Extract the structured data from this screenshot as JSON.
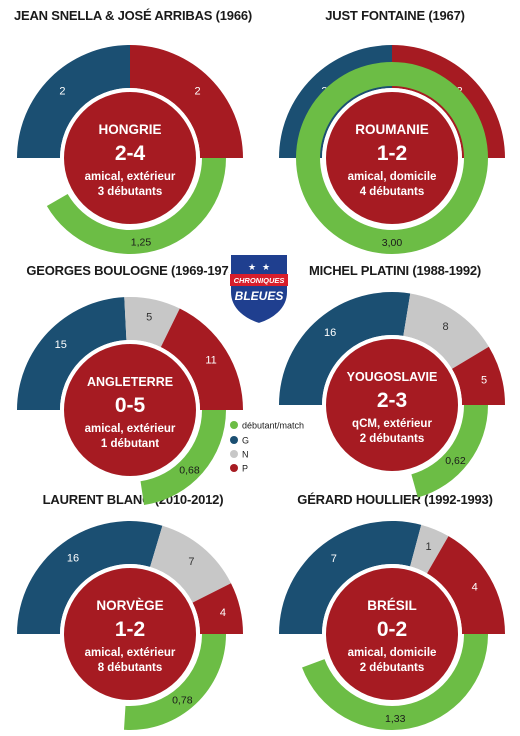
{
  "colors": {
    "G": "#1b4f72",
    "N": "#c7c7c7",
    "P": "#a61b22",
    "debutant": "#6cbd45",
    "center": "#a61b22"
  },
  "logo": {
    "line1": "CHRONIQUES",
    "line2": "BLEUES"
  },
  "legend": [
    {
      "key": "debutant",
      "label": "débutant/match"
    },
    {
      "key": "G",
      "label": "G"
    },
    {
      "key": "N",
      "label": "N"
    },
    {
      "key": "P",
      "label": "P"
    }
  ],
  "chart_data": [
    {
      "type": "donut",
      "title": "JEAN SNELLA & JOSÉ ARRIBAS (1966)",
      "opponent": "HONGRIE",
      "score": "2-4",
      "line1": "amical, extérieur",
      "line2": "3 débutants",
      "series": [
        {
          "key": "G",
          "value": 2
        },
        {
          "key": "N",
          "value": 0
        },
        {
          "key": "P",
          "value": 2
        }
      ],
      "debutants_per_match": 1.25,
      "debutants_label": "1,25"
    },
    {
      "type": "donut",
      "title": "JUST FONTAINE (1967)",
      "opponent": "ROUMANIE",
      "score": "1-2",
      "line1": "amical, domicile",
      "line2": "4 débutants",
      "series": [
        {
          "key": "G",
          "value": 2
        },
        {
          "key": "N",
          "value": 0
        },
        {
          "key": "P",
          "value": 2
        }
      ],
      "debutants_per_match": 3.0,
      "debutants_label": "3,00"
    },
    {
      "type": "donut",
      "title": "GEORGES BOULOGNE (1969-1973)",
      "opponent": "ANGLETERRE",
      "score": "0-5",
      "line1": "amical, extérieur",
      "line2": "1 débutant",
      "series": [
        {
          "key": "G",
          "value": 15
        },
        {
          "key": "N",
          "value": 5
        },
        {
          "key": "P",
          "value": 11
        }
      ],
      "debutants_per_match": 0.68,
      "debutants_label": "0,68"
    },
    {
      "type": "donut",
      "title": "MICHEL PLATINI (1988-1992)",
      "opponent": "YOUGOSLAVIE",
      "score": "2-3",
      "line1": "qCM, extérieur",
      "line2": "2 débutants",
      "series": [
        {
          "key": "G",
          "value": 16
        },
        {
          "key": "N",
          "value": 8
        },
        {
          "key": "P",
          "value": 5
        }
      ],
      "debutants_per_match": 0.62,
      "debutants_label": "0,62"
    },
    {
      "type": "donut",
      "title": "LAURENT BLANC (2010-2012)",
      "opponent": "NORVÈGE",
      "score": "1-2",
      "line1": "amical, extérieur",
      "line2": "8 débutants",
      "series": [
        {
          "key": "G",
          "value": 16
        },
        {
          "key": "N",
          "value": 7
        },
        {
          "key": "P",
          "value": 4
        }
      ],
      "debutants_per_match": 0.78,
      "debutants_label": "0,78"
    },
    {
      "type": "donut",
      "title": "GÉRARD HOULLIER (1992-1993)",
      "opponent": "BRÉSIL",
      "score": "0-2",
      "line1": "amical, domicile",
      "line2": "2 débutants",
      "series": [
        {
          "key": "G",
          "value": 7
        },
        {
          "key": "N",
          "value": 1
        },
        {
          "key": "P",
          "value": 4
        }
      ],
      "debutants_per_match": 1.33,
      "debutants_label": "1,33"
    }
  ]
}
